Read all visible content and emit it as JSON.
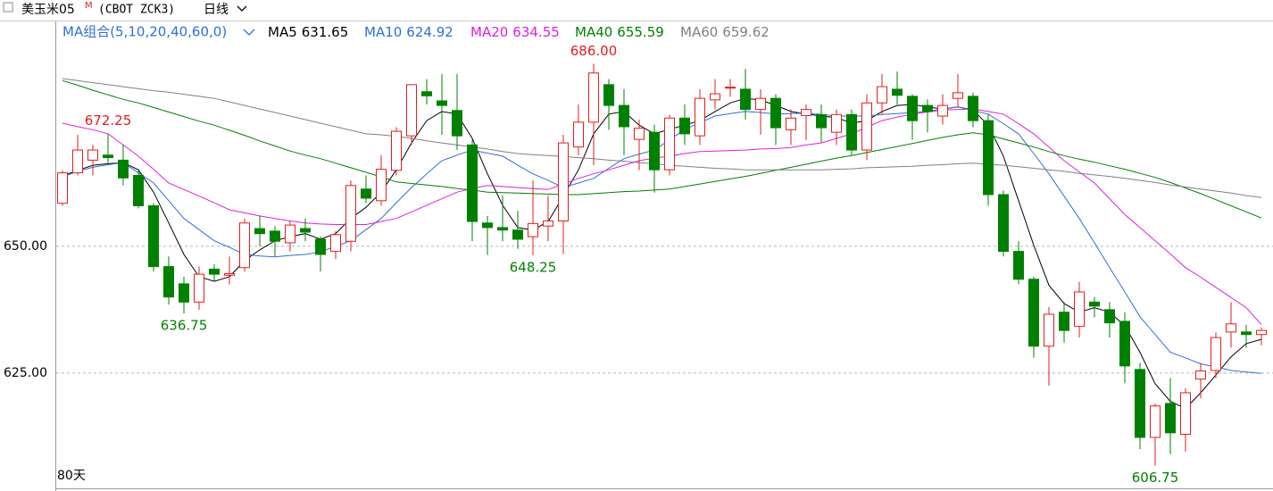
{
  "chart_data": {
    "type": "candlestick",
    "title": "美玉米05",
    "title_mark": "M",
    "subtitle": "(CBOT ZCK3)",
    "period": "日线",
    "ma_group": "MA组合(5,10,20,40,60,0)",
    "footer": "80天",
    "up_color": "#e41c1c",
    "down_color": "#008000",
    "ylim": [
      602.6,
      694.2
    ],
    "yticks": [
      {
        "value": 650,
        "label": "650.00"
      },
      {
        "value": 625,
        "label": "625.00"
      }
    ],
    "grid": true,
    "open": [
      658.5,
      664.5,
      667,
      668,
      667,
      664,
      658,
      646,
      642.6,
      639,
      645.5,
      644.3,
      645.8,
      653.5,
      653,
      650.7,
      653.5,
      651.4,
      649,
      651,
      661.3,
      659,
      665,
      671.8,
      680.5,
      678.7,
      676.8,
      670,
      654.6,
      653.7,
      653.2,
      651.9,
      654,
      655,
      669.6,
      674.5,
      681.9,
      677.8,
      671.1,
      672.5,
      665.1,
      675.3,
      671.8,
      678.9,
      681.3,
      681,
      677,
      679.2,
      673,
      675.8,
      676,
      672.5,
      676,
      669,
      678.3,
      681,
      679.6,
      677.8,
      675.7,
      679.2,
      679.6,
      674.8,
      660.2,
      649,
      643.5,
      630.3,
      637,
      634.2,
      639,
      637.5,
      635.2,
      625.7,
      612.3,
      619,
      612.9,
      623.8,
      625.5,
      633.1,
      633.1,
      632.6
    ],
    "high": [
      665,
      672,
      670,
      672.25,
      670,
      665,
      658.5,
      648,
      644,
      646,
      646.5,
      648,
      655.5,
      656,
      654,
      655,
      655.5,
      652,
      653,
      663,
      664,
      668,
      673.5,
      682,
      683,
      684,
      684,
      671,
      656,
      660,
      657,
      663,
      660,
      672,
      678,
      686,
      683,
      681,
      675,
      674,
      676,
      678,
      681,
      683,
      683,
      685,
      681,
      680,
      677,
      678,
      678,
      677,
      677,
      680,
      684,
      684.5,
      680,
      679,
      680,
      684,
      680.3,
      676,
      661,
      651,
      644,
      638,
      639,
      643,
      640,
      639,
      637,
      627,
      619,
      624,
      622,
      627,
      633,
      639,
      634.5,
      634
    ],
    "low": [
      658,
      664,
      664,
      666,
      662,
      657.5,
      645,
      638.5,
      636.75,
      637.5,
      643,
      642.5,
      645,
      650,
      648,
      649,
      651,
      645,
      647.5,
      649,
      658.5,
      658,
      664,
      670,
      678,
      672,
      669,
      651,
      648.3,
      651,
      649.5,
      648.25,
      651,
      648.5,
      668,
      666,
      673,
      668,
      665,
      660.6,
      664,
      670,
      670,
      677,
      679.5,
      675,
      672,
      670,
      670,
      671,
      670.5,
      670,
      668,
      667,
      676,
      678,
      671,
      672.5,
      674,
      677.5,
      673.5,
      658,
      648,
      642.5,
      628,
      622.5,
      631,
      632,
      636,
      632,
      623,
      610,
      606.75,
      609,
      609.5,
      620,
      624,
      630,
      630,
      630.5
    ],
    "close": [
      664.5,
      669,
      669,
      667.5,
      663.5,
      658,
      646,
      640,
      639,
      644.5,
      644.5,
      644.6,
      654.6,
      652.5,
      651,
      654.2,
      652.8,
      648.4,
      652.3,
      662,
      659.5,
      665.2,
      672.7,
      681.9,
      679.7,
      677.8,
      671.8,
      654.9,
      653.7,
      653.2,
      651.4,
      654.5,
      655,
      670.4,
      674.5,
      684.2,
      677.8,
      673.6,
      673.3,
      665.1,
      675.3,
      672.2,
      679.2,
      680.1,
      681.4,
      677,
      679.2,
      673.4,
      675.3,
      677,
      673.4,
      676,
      669,
      678.3,
      681.5,
      679.8,
      674.8,
      676.6,
      677.8,
      680.3,
      674.8,
      660.2,
      649,
      643.5,
      630.3,
      636.6,
      633.4,
      641,
      638.2,
      634.9,
      626.4,
      612.3,
      618.5,
      613.2,
      621.1,
      625.4,
      632,
      634.7,
      632.6,
      633.4
    ],
    "high_labels": [
      null,
      null,
      null,
      "672.25",
      null,
      null,
      null,
      null,
      null,
      null,
      null,
      null,
      null,
      null,
      null,
      null,
      null,
      null,
      null,
      null,
      null,
      null,
      null,
      null,
      null,
      null,
      null,
      null,
      null,
      null,
      null,
      null,
      null,
      null,
      null,
      "686.00",
      null,
      null,
      null,
      null,
      null,
      null,
      null,
      null,
      null,
      null,
      null,
      null,
      null,
      null,
      null,
      null,
      null,
      null,
      null,
      null,
      null,
      null,
      null,
      null,
      null,
      null,
      null,
      null,
      null,
      null,
      null,
      null,
      null,
      null,
      null,
      null,
      null,
      null,
      null,
      null,
      null,
      null,
      null,
      null
    ],
    "low_labels": [
      null,
      null,
      null,
      null,
      null,
      null,
      null,
      null,
      "636.75",
      null,
      null,
      null,
      null,
      null,
      null,
      null,
      null,
      null,
      null,
      null,
      null,
      null,
      null,
      null,
      null,
      null,
      null,
      null,
      null,
      null,
      null,
      "648.25",
      null,
      null,
      null,
      null,
      null,
      null,
      null,
      null,
      null,
      null,
      null,
      null,
      null,
      null,
      null,
      null,
      null,
      null,
      null,
      null,
      null,
      null,
      null,
      null,
      null,
      null,
      null,
      null,
      null,
      null,
      null,
      null,
      null,
      null,
      null,
      null,
      null,
      null,
      null,
      null,
      "606.75",
      null,
      null,
      null,
      null,
      null,
      null,
      null
    ],
    "series": [
      {
        "name": "MA5",
        "color": "#000000",
        "values": [
          663.9,
          665.0,
          666.0,
          666.3,
          666.5,
          665.1,
          660.7,
          654.6,
          648.4,
          644.0,
          643.1,
          644.0,
          647.2,
          649.3,
          651.1,
          651.9,
          652.5,
          651.4,
          652.5,
          655.5,
          657.7,
          660.7,
          665.1,
          670.4,
          674.8,
          676.6,
          676.1,
          671.3,
          664.3,
          658.1,
          653.7,
          653.2,
          654.9,
          659.9,
          665.1,
          672.2,
          676.1,
          676.6,
          673.9,
          672.2,
          673.1,
          673.9,
          674.8,
          676.6,
          678.3,
          679.2,
          678.9,
          677.8,
          676.6,
          676.1,
          675.7,
          675.4,
          674.3,
          674.8,
          676.6,
          677.8,
          678.0,
          677.5,
          677.1,
          677.5,
          676.9,
          673.9,
          667.8,
          659.0,
          650.2,
          642.3,
          638.7,
          637.0,
          637.9,
          637.0,
          634.3,
          629.1,
          622.9,
          619.4,
          618.0,
          621.1,
          624.6,
          628.2,
          630.8,
          631.65
        ]
      },
      {
        "name": "MA10",
        "color": "#2f6fd6",
        "values": [
          663.7,
          664.8,
          665.6,
          666.1,
          666.5,
          664.5,
          662.5,
          659.0,
          655.5,
          653.3,
          651.1,
          649.8,
          648.4,
          648.1,
          647.9,
          648.2,
          648.4,
          648.9,
          650.0,
          651.1,
          653.3,
          655.5,
          658.6,
          661.6,
          664.3,
          666.9,
          668.0,
          669.0,
          668.4,
          667.8,
          666.0,
          664.3,
          663.0,
          661.6,
          662.5,
          663.4,
          665.4,
          667.3,
          668.2,
          669.0,
          671.0,
          673.1,
          674.4,
          675.7,
          676.2,
          676.6,
          676.4,
          676.1,
          676.2,
          676.3,
          676.0,
          675.7,
          675.7,
          675.7,
          676.0,
          676.2,
          676.4,
          676.6,
          677.1,
          677.5,
          676.8,
          676.1,
          674.2,
          672.2,
          668.3,
          664.3,
          659.9,
          655.5,
          650.7,
          645.8,
          641.0,
          636.1,
          632.6,
          629.1,
          628.0,
          626.8,
          626.2,
          625.5,
          625.2,
          624.92
        ]
      },
      {
        "name": "MA20",
        "color": "#e01ee0",
        "values": [
          674.3,
          673.6,
          673.0,
          672.2,
          670.0,
          667.8,
          665.2,
          662.5,
          661.2,
          659.9,
          658.6,
          657.2,
          656.6,
          656.0,
          655.5,
          655.0,
          654.6,
          654.4,
          654.3,
          654.3,
          654.3,
          654.9,
          655.5,
          656.8,
          658.1,
          659.4,
          660.7,
          661.4,
          662.0,
          661.8,
          661.6,
          661.4,
          661.2,
          662.3,
          663.4,
          664.3,
          665.1,
          666.0,
          666.9,
          667.4,
          667.8,
          668.3,
          668.7,
          668.8,
          668.9,
          669.0,
          669.2,
          669.3,
          669.5,
          670.0,
          670.4,
          671.3,
          672.2,
          673.5,
          674.8,
          675.5,
          676.1,
          676.5,
          676.9,
          677.0,
          677.1,
          676.6,
          676.1,
          674.2,
          672.2,
          669.6,
          666.9,
          664.7,
          662.5,
          659.4,
          656.3,
          653.7,
          651.1,
          648.5,
          645.8,
          643.9,
          641.9,
          639.9,
          637.9,
          634.55
        ]
      },
      {
        "name": "MA40",
        "color": "#008000",
        "values": [
          682.7,
          681.8,
          680.8,
          679.9,
          679.0,
          678.3,
          677.4,
          676.5,
          675.6,
          674.7,
          673.9,
          672.9,
          671.9,
          670.8,
          669.8,
          668.8,
          668.0,
          667.3,
          666.4,
          665.5,
          664.6,
          663.7,
          662.7,
          662.4,
          662.1,
          661.8,
          661.4,
          661.1,
          660.7,
          660.6,
          660.5,
          660.4,
          660.3,
          660.2,
          660.2,
          660.4,
          660.6,
          660.8,
          660.9,
          661.1,
          661.3,
          661.8,
          662.3,
          662.8,
          663.3,
          663.8,
          664.4,
          665.0,
          665.6,
          666.2,
          666.8,
          667.4,
          667.9,
          668.5,
          669.1,
          669.7,
          670.3,
          670.9,
          671.5,
          672.0,
          672.4,
          672.0,
          671.2,
          670.4,
          669.6,
          668.7,
          667.9,
          667.2,
          666.6,
          665.9,
          665.2,
          664.4,
          663.6,
          662.6,
          661.5,
          660.4,
          659.2,
          658.0,
          656.8,
          655.59
        ]
      },
      {
        "name": "MA60",
        "color": "#808080",
        "values": [
          683.1,
          682.7,
          682.3,
          681.9,
          681.5,
          681.1,
          680.7,
          680.4,
          680.0,
          679.6,
          679.2,
          678.5,
          677.8,
          677.1,
          676.4,
          675.7,
          675.0,
          674.3,
          673.6,
          672.9,
          672.2,
          672.0,
          671.7,
          671.3,
          670.8,
          670.4,
          670.0,
          669.6,
          669.2,
          668.7,
          668.3,
          668.1,
          667.9,
          667.7,
          667.5,
          667.3,
          667.0,
          666.8,
          666.5,
          666.3,
          666.0,
          665.8,
          665.6,
          665.4,
          665.3,
          665.1,
          665.1,
          665.1,
          665.1,
          665.1,
          665.1,
          665.2,
          665.3,
          665.5,
          665.6,
          665.7,
          665.8,
          666.0,
          666.1,
          666.3,
          666.4,
          666.2,
          666.0,
          665.7,
          665.4,
          665.1,
          664.8,
          664.4,
          664.1,
          663.8,
          663.4,
          663.0,
          662.6,
          662.1,
          661.7,
          661.3,
          660.9,
          660.5,
          660.0,
          659.62
        ]
      }
    ]
  }
}
